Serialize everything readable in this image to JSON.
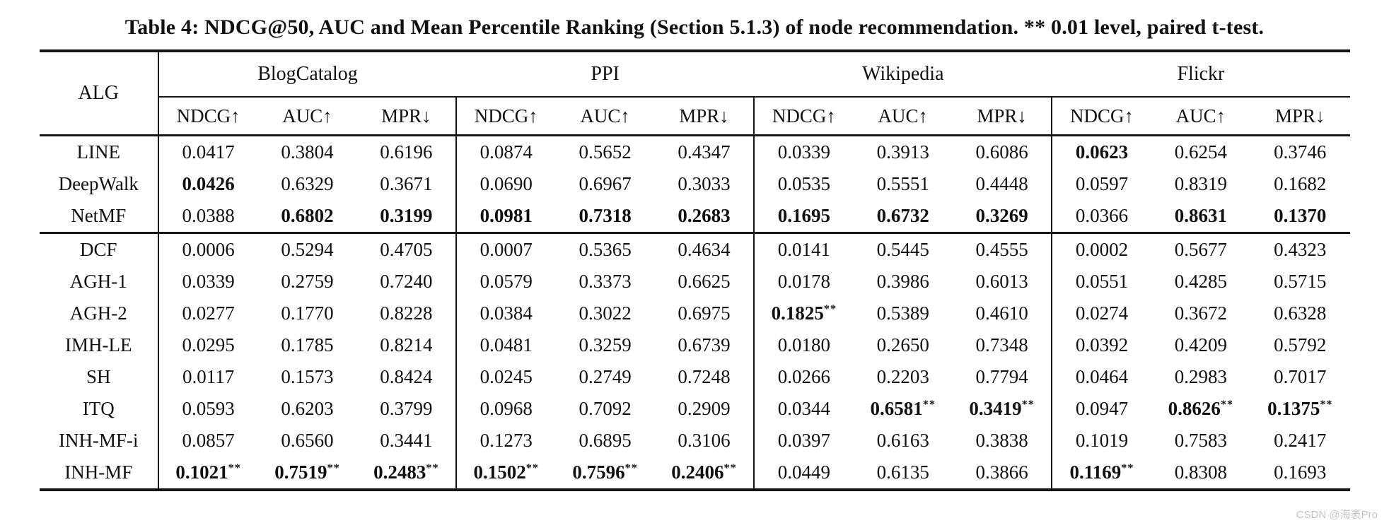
{
  "caption": "Table 4: NDCG@50, AUC and Mean Percentile Ranking (Section 5.1.3) of node recommendation. ** 0.01 level, paired t-test.",
  "watermark": "CSDN @海袤Pro",
  "colors": {
    "text": "#111111",
    "rule": "#151515",
    "watermark": "#c4c4c4"
  },
  "table": {
    "alg_header": "ALG",
    "groups": [
      "BlogCatalog",
      "PPI",
      "Wikipedia",
      "Flickr"
    ],
    "metrics": [
      "NDCG↑",
      "AUC↑",
      "MPR↓"
    ],
    "sections": [
      {
        "rows": [
          {
            "alg": "LINE",
            "cells": [
              {
                "v": "0.0417"
              },
              {
                "v": "0.3804"
              },
              {
                "v": "0.6196"
              },
              {
                "v": "0.0874"
              },
              {
                "v": "0.5652"
              },
              {
                "v": "0.4347"
              },
              {
                "v": "0.0339"
              },
              {
                "v": "0.3913"
              },
              {
                "v": "0.6086"
              },
              {
                "v": "0.0623",
                "b": true
              },
              {
                "v": "0.6254"
              },
              {
                "v": "0.3746"
              }
            ]
          },
          {
            "alg": "DeepWalk",
            "cells": [
              {
                "v": "0.0426",
                "b": true
              },
              {
                "v": "0.6329"
              },
              {
                "v": "0.3671"
              },
              {
                "v": "0.0690"
              },
              {
                "v": "0.6967"
              },
              {
                "v": "0.3033"
              },
              {
                "v": "0.0535"
              },
              {
                "v": "0.5551"
              },
              {
                "v": "0.4448"
              },
              {
                "v": "0.0597"
              },
              {
                "v": "0.8319"
              },
              {
                "v": "0.1682"
              }
            ]
          },
          {
            "alg": "NetMF",
            "cells": [
              {
                "v": "0.0388"
              },
              {
                "v": "0.6802",
                "b": true
              },
              {
                "v": "0.3199",
                "b": true
              },
              {
                "v": "0.0981",
                "b": true
              },
              {
                "v": "0.7318",
                "b": true
              },
              {
                "v": "0.2683",
                "b": true
              },
              {
                "v": "0.1695",
                "b": true
              },
              {
                "v": "0.6732",
                "b": true
              },
              {
                "v": "0.3269",
                "b": true
              },
              {
                "v": "0.0366"
              },
              {
                "v": "0.8631",
                "b": true
              },
              {
                "v": "0.1370",
                "b": true
              }
            ]
          }
        ]
      },
      {
        "rows": [
          {
            "alg": "DCF",
            "cells": [
              {
                "v": "0.0006"
              },
              {
                "v": "0.5294"
              },
              {
                "v": "0.4705"
              },
              {
                "v": "0.0007"
              },
              {
                "v": "0.5365"
              },
              {
                "v": "0.4634"
              },
              {
                "v": "0.0141"
              },
              {
                "v": "0.5445"
              },
              {
                "v": "0.4555"
              },
              {
                "v": "0.0002"
              },
              {
                "v": "0.5677"
              },
              {
                "v": "0.4323"
              }
            ]
          },
          {
            "alg": "AGH-1",
            "cells": [
              {
                "v": "0.0339"
              },
              {
                "v": "0.2759"
              },
              {
                "v": "0.7240"
              },
              {
                "v": "0.0579"
              },
              {
                "v": "0.3373"
              },
              {
                "v": "0.6625"
              },
              {
                "v": "0.0178"
              },
              {
                "v": "0.3986"
              },
              {
                "v": "0.6013"
              },
              {
                "v": "0.0551"
              },
              {
                "v": "0.4285"
              },
              {
                "v": "0.5715"
              }
            ]
          },
          {
            "alg": "AGH-2",
            "cells": [
              {
                "v": "0.0277"
              },
              {
                "v": "0.1770"
              },
              {
                "v": "0.8228"
              },
              {
                "v": "0.0384"
              },
              {
                "v": "0.3022"
              },
              {
                "v": "0.6975"
              },
              {
                "v": "0.1825",
                "b": true,
                "s": "**"
              },
              {
                "v": "0.5389"
              },
              {
                "v": "0.4610"
              },
              {
                "v": "0.0274"
              },
              {
                "v": "0.3672"
              },
              {
                "v": "0.6328"
              }
            ]
          },
          {
            "alg": "IMH-LE",
            "cells": [
              {
                "v": "0.0295"
              },
              {
                "v": "0.1785"
              },
              {
                "v": "0.8214"
              },
              {
                "v": "0.0481"
              },
              {
                "v": "0.3259"
              },
              {
                "v": "0.6739"
              },
              {
                "v": "0.0180"
              },
              {
                "v": "0.2650"
              },
              {
                "v": "0.7348"
              },
              {
                "v": "0.0392"
              },
              {
                "v": "0.4209"
              },
              {
                "v": "0.5792"
              }
            ]
          },
          {
            "alg": "SH",
            "cells": [
              {
                "v": "0.0117"
              },
              {
                "v": "0.1573"
              },
              {
                "v": "0.8424"
              },
              {
                "v": "0.0245"
              },
              {
                "v": "0.2749"
              },
              {
                "v": "0.7248"
              },
              {
                "v": "0.0266"
              },
              {
                "v": "0.2203"
              },
              {
                "v": "0.7794"
              },
              {
                "v": "0.0464"
              },
              {
                "v": "0.2983"
              },
              {
                "v": "0.7017"
              }
            ]
          },
          {
            "alg": "ITQ",
            "cells": [
              {
                "v": "0.0593"
              },
              {
                "v": "0.6203"
              },
              {
                "v": "0.3799"
              },
              {
                "v": "0.0968"
              },
              {
                "v": "0.7092"
              },
              {
                "v": "0.2909"
              },
              {
                "v": "0.0344"
              },
              {
                "v": "0.6581",
                "b": true,
                "s": "**"
              },
              {
                "v": "0.3419",
                "b": true,
                "s": "**"
              },
              {
                "v": "0.0947"
              },
              {
                "v": "0.8626",
                "b": true,
                "s": "**"
              },
              {
                "v": "0.1375",
                "b": true,
                "s": "**"
              }
            ]
          },
          {
            "alg": "INH-MF-i",
            "cells": [
              {
                "v": "0.0857"
              },
              {
                "v": "0.6560"
              },
              {
                "v": "0.3441"
              },
              {
                "v": "0.1273"
              },
              {
                "v": "0.6895"
              },
              {
                "v": "0.3106"
              },
              {
                "v": "0.0397"
              },
              {
                "v": "0.6163"
              },
              {
                "v": "0.3838"
              },
              {
                "v": "0.1019"
              },
              {
                "v": "0.7583"
              },
              {
                "v": "0.2417"
              }
            ]
          },
          {
            "alg": "INH-MF",
            "cells": [
              {
                "v": "0.1021",
                "b": true,
                "s": "**"
              },
              {
                "v": "0.7519",
                "b": true,
                "s": "**"
              },
              {
                "v": "0.2483",
                "b": true,
                "s": "**"
              },
              {
                "v": "0.1502",
                "b": true,
                "s": "**"
              },
              {
                "v": "0.7596",
                "b": true,
                "s": "**"
              },
              {
                "v": "0.2406",
                "b": true,
                "s": "**"
              },
              {
                "v": "0.0449"
              },
              {
                "v": "0.6135"
              },
              {
                "v": "0.3866"
              },
              {
                "v": "0.1169",
                "b": true,
                "s": "**"
              },
              {
                "v": "0.8308"
              },
              {
                "v": "0.1693"
              }
            ]
          }
        ]
      }
    ]
  }
}
